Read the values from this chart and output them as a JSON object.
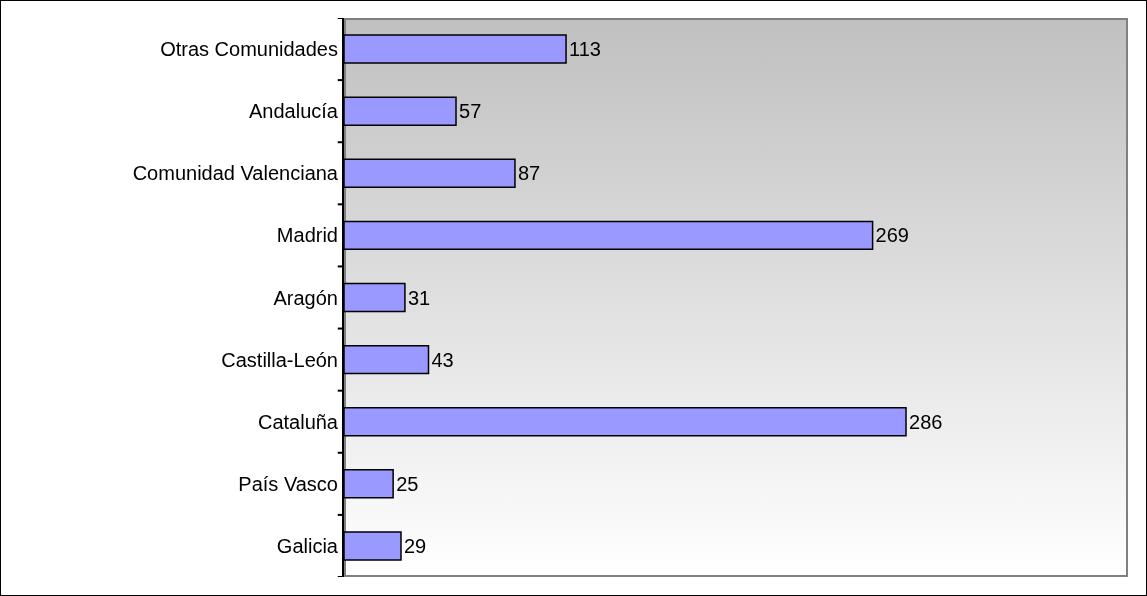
{
  "chart_data": {
    "type": "bar",
    "orientation": "horizontal",
    "categories": [
      "Otras Comunidades",
      "Andalucía",
      "Comunidad Valenciana",
      "Madrid",
      "Aragón",
      "Castilla-León",
      "Cataluña",
      "País Vasco",
      "Galicia"
    ],
    "values": [
      113,
      57,
      87,
      269,
      31,
      43,
      286,
      25,
      29
    ],
    "color": "#9999ff",
    "data_labels": true,
    "grid": false,
    "legend": false,
    "tick_labels": "y"
  }
}
